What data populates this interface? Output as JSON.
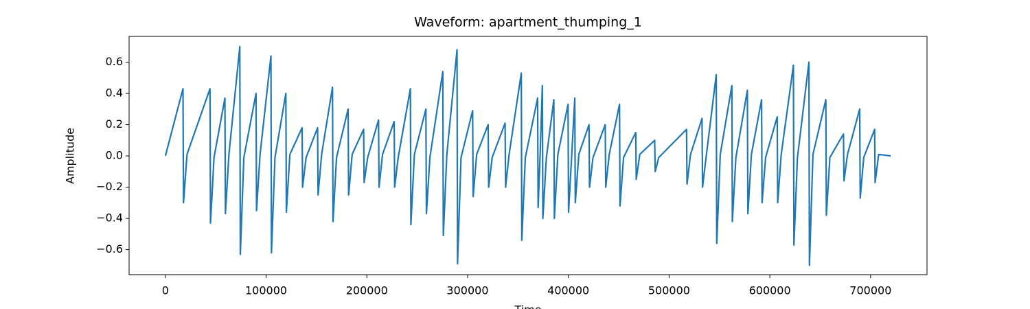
{
  "chart_data": {
    "type": "line",
    "title": "Waveform: apartment_thumping_1",
    "xlabel": "Time",
    "ylabel": "Amplitude",
    "color": "#1f77b4",
    "x": [
      0,
      17500,
      18000,
      21500,
      44300,
      44800,
      48300,
      59100,
      59600,
      63100,
      73900,
      74400,
      77900,
      90000,
      90500,
      94000,
      104800,
      105300,
      108800,
      119600,
      120100,
      123600,
      135700,
      136200,
      139700,
      151100,
      151600,
      155100,
      165900,
      166400,
      169900,
      181400,
      181900,
      185400,
      196800,
      197300,
      200800,
      211600,
      212100,
      215600,
      227100,
      227600,
      231100,
      243200,
      243700,
      247200,
      258600,
      259100,
      262600,
      275400,
      275900,
      279400,
      289500,
      290000,
      293500,
      305000,
      305500,
      309000,
      320400,
      320900,
      324400,
      337200,
      337700,
      341200,
      353300,
      353800,
      357300,
      369500,
      370000,
      372000,
      374200,
      374700,
      378200,
      385600,
      386100,
      389600,
      399700,
      400200,
      403200,
      406400,
      406900,
      410400,
      420500,
      421000,
      424500,
      436600,
      437100,
      440600,
      450800,
      451300,
      454800,
      466900,
      467400,
      470900,
      485700,
      486200,
      489700,
      517300,
      517800,
      521300,
      532700,
      533200,
      536700,
      546800,
      547300,
      550800,
      562300,
      562800,
      566300,
      577700,
      578200,
      581700,
      591800,
      592300,
      595800,
      607300,
      607800,
      611300,
      623400,
      623900,
      627400,
      638800,
      639300,
      642800,
      655600,
      656100,
      659600,
      673100,
      673600,
      677100,
      689200,
      689700,
      693200,
      704000,
      704500,
      708000,
      720000
    ],
    "values": [
      0,
      0.43,
      -0.3,
      0.01,
      0.43,
      -0.43,
      -0.01,
      0.37,
      -0.37,
      0.01,
      0.7,
      -0.63,
      -0.01,
      0.4,
      -0.35,
      0.01,
      0.64,
      -0.62,
      -0.01,
      0.4,
      -0.36,
      0.01,
      0.18,
      -0.2,
      -0.01,
      0.18,
      -0.25,
      0.01,
      0.44,
      -0.42,
      -0.01,
      0.3,
      -0.25,
      0.01,
      0.17,
      -0.17,
      -0.01,
      0.23,
      -0.2,
      0.01,
      0.22,
      -0.2,
      -0.01,
      0.43,
      -0.44,
      0.01,
      0.3,
      -0.37,
      -0.01,
      0.54,
      -0.51,
      0.01,
      0.68,
      -0.69,
      -0.01,
      0.29,
      -0.26,
      0.01,
      0.2,
      -0.2,
      -0.01,
      0.21,
      -0.2,
      0.01,
      0.53,
      -0.54,
      -0.01,
      0.37,
      -0.33,
      0.01,
      0.45,
      -0.4,
      -0.01,
      0.36,
      -0.4,
      0.01,
      0.33,
      -0.36,
      -0.01,
      0.37,
      -0.3,
      0.01,
      0.2,
      -0.2,
      -0.01,
      0.2,
      -0.2,
      0.01,
      0.33,
      -0.32,
      -0.01,
      0.15,
      -0.15,
      0.01,
      0.1,
      -0.1,
      -0.01,
      0.17,
      -0.18,
      0.01,
      0.24,
      -0.2,
      -0.01,
      0.52,
      -0.56,
      0.01,
      0.45,
      -0.42,
      -0.01,
      0.42,
      -0.37,
      0.01,
      0.36,
      -0.3,
      -0.01,
      0.25,
      -0.3,
      0.01,
      0.58,
      -0.57,
      -0.01,
      0.6,
      -0.7,
      0.01,
      0.36,
      -0.38,
      -0.01,
      0.14,
      -0.16,
      0.01,
      0.3,
      -0.27,
      -0.01,
      0.17,
      -0.17,
      0.01,
      0
    ],
    "xlim": [
      -36000,
      756000
    ],
    "ylim": [
      -0.76,
      0.765
    ],
    "xticks": [
      0,
      100000,
      200000,
      300000,
      400000,
      500000,
      600000,
      700000
    ],
    "yticks": [
      {
        "value": -0.6,
        "label": "−0.6"
      },
      {
        "value": -0.4,
        "label": "−0.4"
      },
      {
        "value": -0.2,
        "label": "−0.2"
      },
      {
        "value": 0,
        "label": "0.0"
      },
      0.2,
      0.4,
      0.6
    ]
  }
}
